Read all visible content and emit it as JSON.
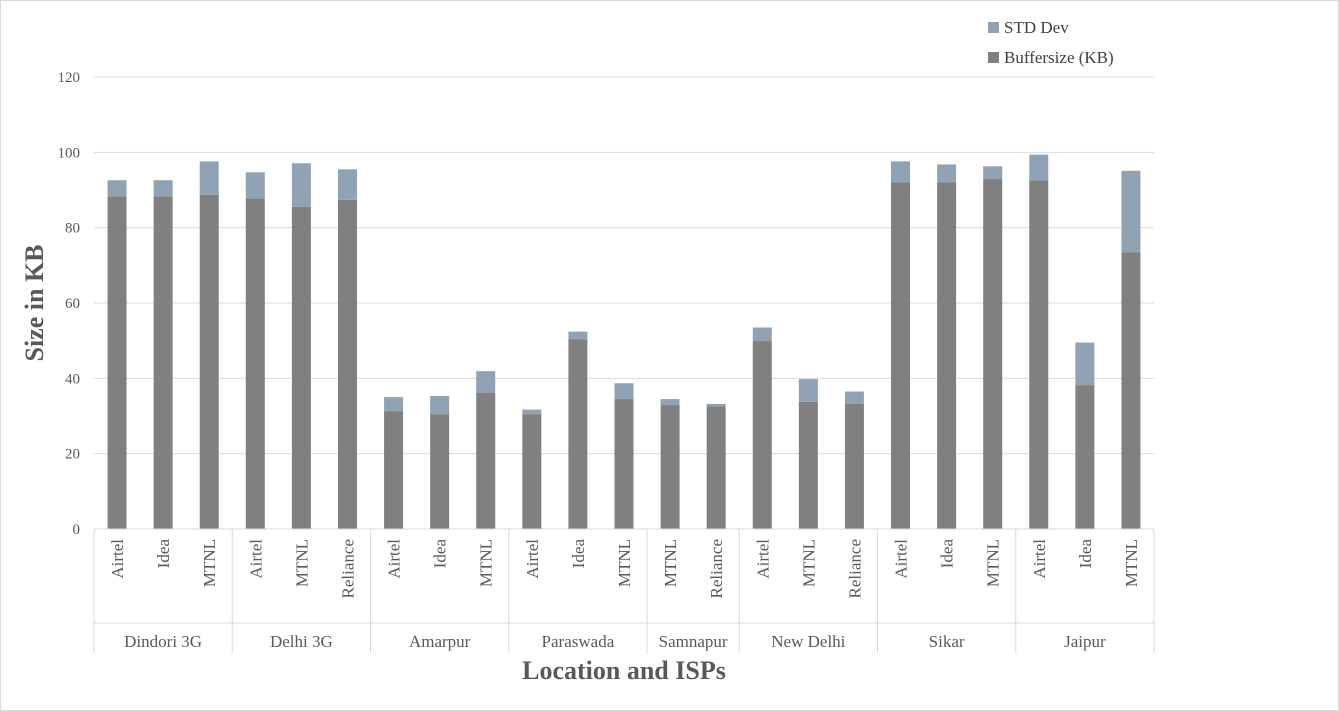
{
  "chart_data": {
    "type": "bar",
    "stacked": true,
    "xlabel": "Location and ISPs",
    "ylabel": "Size in KB",
    "ylim": [
      0,
      120
    ],
    "yticks": [
      0,
      20,
      40,
      60,
      80,
      100,
      120
    ],
    "grid": true,
    "legend_position": "top-right",
    "groups": [
      {
        "name": "Dindori 3G",
        "categories": [
          "Airtel",
          "Idea",
          "MTNL"
        ]
      },
      {
        "name": "Delhi 3G",
        "categories": [
          "Airtel",
          "MTNL",
          "Reliance"
        ]
      },
      {
        "name": "Amarpur",
        "categories": [
          "Airtel",
          "Idea",
          "MTNL"
        ]
      },
      {
        "name": "Paraswada",
        "categories": [
          "Airtel",
          "Idea",
          "MTNL"
        ]
      },
      {
        "name": "Samnapur",
        "categories": [
          "MTNL",
          "Reliance"
        ]
      },
      {
        "name": "New Delhi",
        "categories": [
          "Airtel",
          "MTNL",
          "Reliance"
        ]
      },
      {
        "name": "Sikar",
        "categories": [
          "Airtel",
          "Idea",
          "MTNL"
        ]
      },
      {
        "name": "Jaipur",
        "categories": [
          "Airtel",
          "Idea",
          "MTNL"
        ]
      }
    ],
    "series": [
      {
        "name": "Buffersize (KB)",
        "color": "#808080",
        "values": [
          88.3,
          88.3,
          88.7,
          87.8,
          85.5,
          87.4,
          31.3,
          30.5,
          36.1,
          30.5,
          50.3,
          34.5,
          32.9,
          32.6,
          49.9,
          33.8,
          33.2,
          92.0,
          92.0,
          92.9,
          92.6,
          38.2,
          73.5
        ]
      },
      {
        "name": "STD Dev",
        "color": "#8fa3b5",
        "values": [
          4.3,
          4.3,
          8.9,
          6.9,
          11.6,
          8.1,
          3.7,
          4.8,
          5.8,
          1.2,
          2.1,
          4.2,
          1.6,
          0.6,
          3.6,
          6.0,
          3.3,
          5.6,
          4.8,
          3.4,
          6.8,
          11.3,
          21.6
        ]
      }
    ]
  }
}
